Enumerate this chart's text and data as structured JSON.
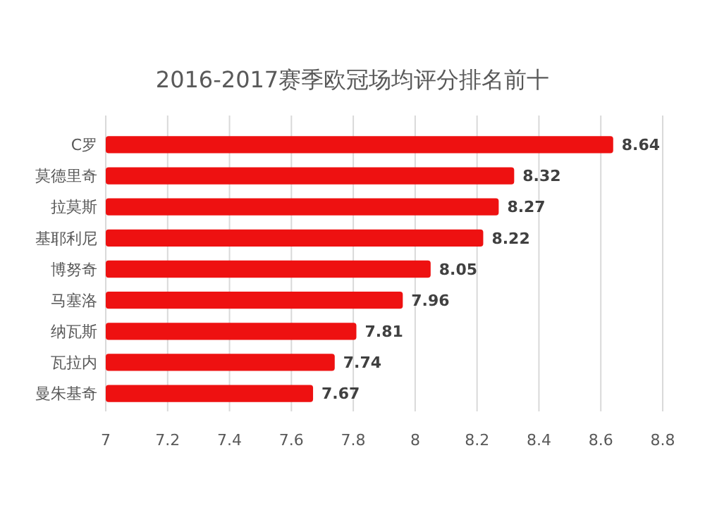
{
  "chart_data": {
    "type": "bar",
    "orientation": "horizontal",
    "title": "2016-2017赛季欧冠场均评分排名前十",
    "categories": [
      "C罗",
      "莫德里奇",
      "拉莫斯",
      "基耶利尼",
      "博努奇",
      "马塞洛",
      "纳瓦斯",
      "瓦拉内",
      "曼朱基奇"
    ],
    "values": [
      8.64,
      8.32,
      8.27,
      8.22,
      8.05,
      7.96,
      7.81,
      7.74,
      7.67
    ],
    "color": "#ee1111",
    "xlim": [
      7,
      8.8
    ],
    "xticks": [
      7,
      7.2,
      7.4,
      7.6,
      7.8,
      8,
      8.2,
      8.4,
      8.6,
      8.8
    ],
    "grid": "x",
    "data_labels": true
  }
}
